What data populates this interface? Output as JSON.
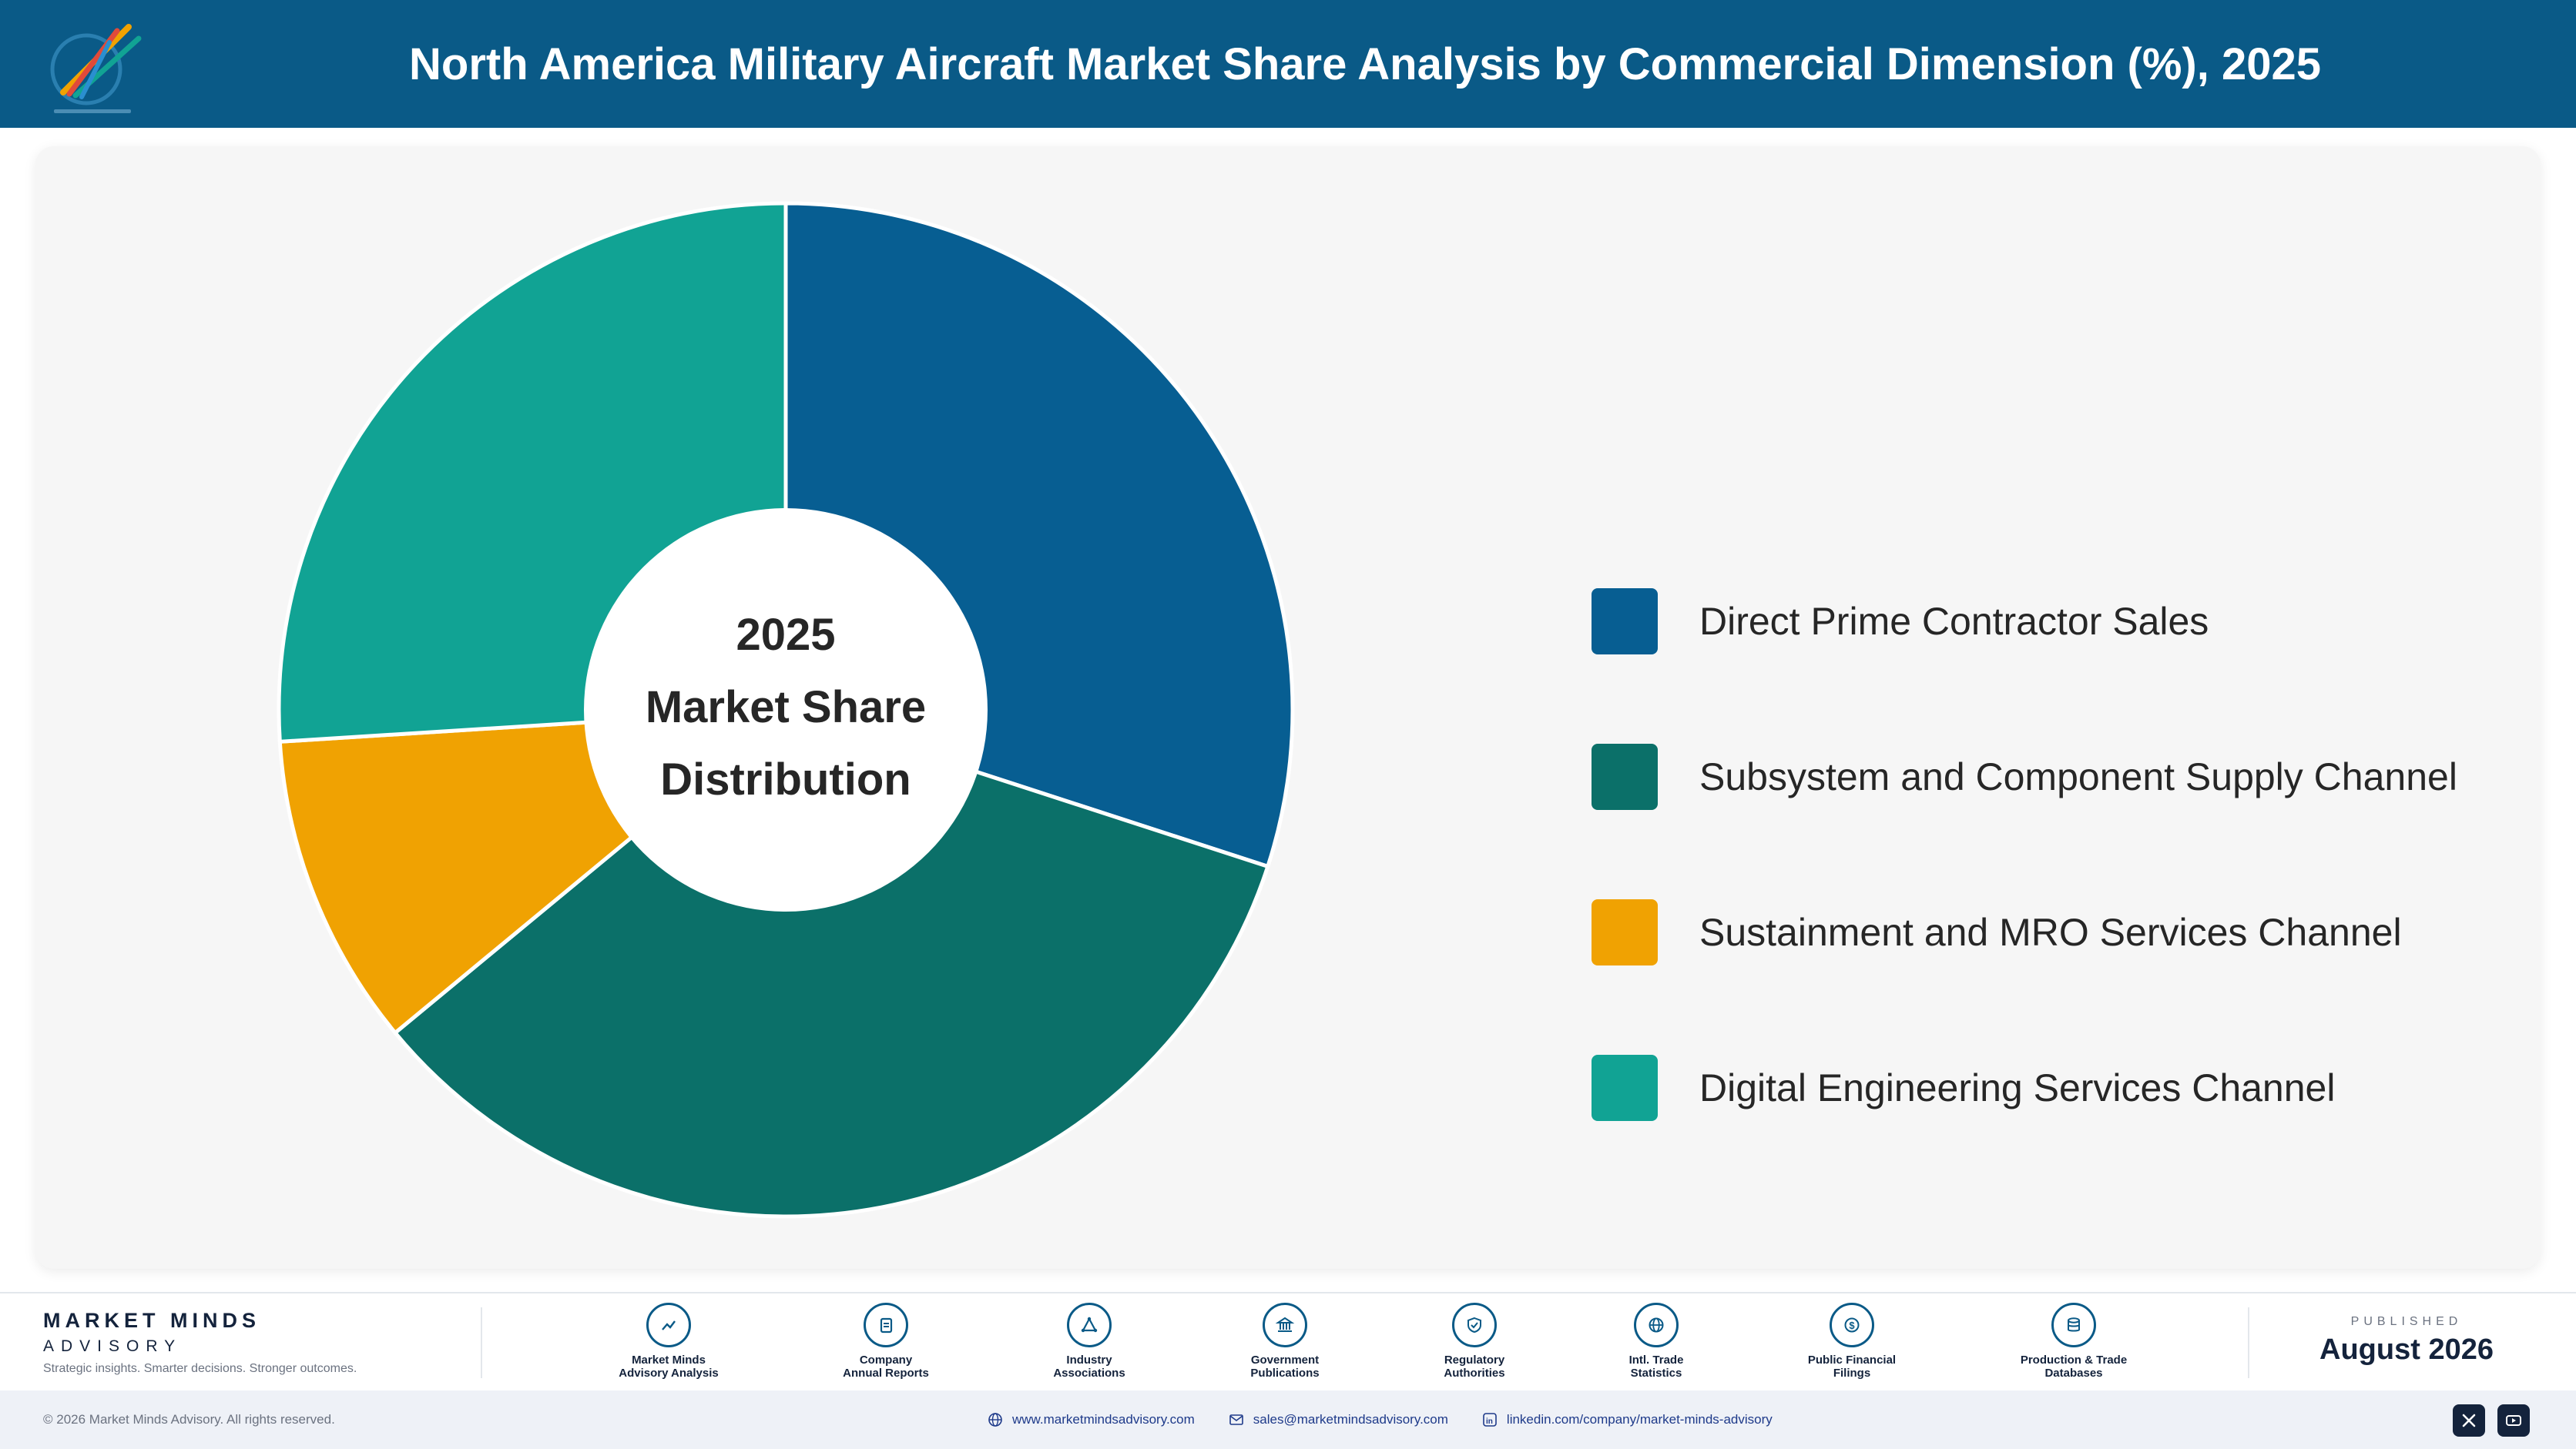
{
  "header": {
    "title": "North America Military Aircraft Market Share Analysis by Commercial Dimension (%), 2025",
    "background": "#0a5a87"
  },
  "chart_data": {
    "type": "pie",
    "title": "North America Military Aircraft Market Share Analysis by Commercial Dimension (%), 2025",
    "center_text": [
      "2025",
      "Market Share",
      "Distribution"
    ],
    "categories": [
      "Direct Prime Contractor Sales",
      "Subsystem and Component Supply Channel",
      "Sustainment and MRO Services Channel",
      "Digital Engineering Services Channel"
    ],
    "values": [
      30,
      34,
      10,
      26
    ],
    "colors": [
      "#075e92",
      "#0b7069",
      "#f0a202",
      "#11a394"
    ],
    "legend_position": "right",
    "donut": true
  },
  "footer": {
    "brand_name": "MARKET MINDS",
    "brand_sub": "ADVISORY",
    "tagline": "Strategic insights. Smarter decisions. Stronger outcomes.",
    "sources": [
      {
        "line1": "Market Minds",
        "line2": "Advisory Analysis",
        "icon": "trend-chart-icon"
      },
      {
        "line1": "Company",
        "line2": "Annual Reports",
        "icon": "document-icon"
      },
      {
        "line1": "Industry",
        "line2": "Associations",
        "icon": "network-icon"
      },
      {
        "line1": "Government",
        "line2": "Publications",
        "icon": "government-building-icon"
      },
      {
        "line1": "Regulatory",
        "line2": "Authorities",
        "icon": "shield-check-icon"
      },
      {
        "line1": "Intl. Trade",
        "line2": "Statistics",
        "icon": "globe-icon"
      },
      {
        "line1": "Public Financial",
        "line2": "Filings",
        "icon": "dollar-coin-icon"
      },
      {
        "line1": "Production & Trade",
        "line2": "Databases",
        "icon": "database-icon"
      }
    ],
    "published_label": "PUBLISHED",
    "published_date": "August 2026",
    "copyright": "© 2026 Market Minds Advisory. All rights reserved.",
    "website": "www.marketmindsadvisory.com",
    "email": "sales@marketmindsadvisory.com",
    "linkedin": "linkedin.com/company/market-minds-advisory"
  }
}
